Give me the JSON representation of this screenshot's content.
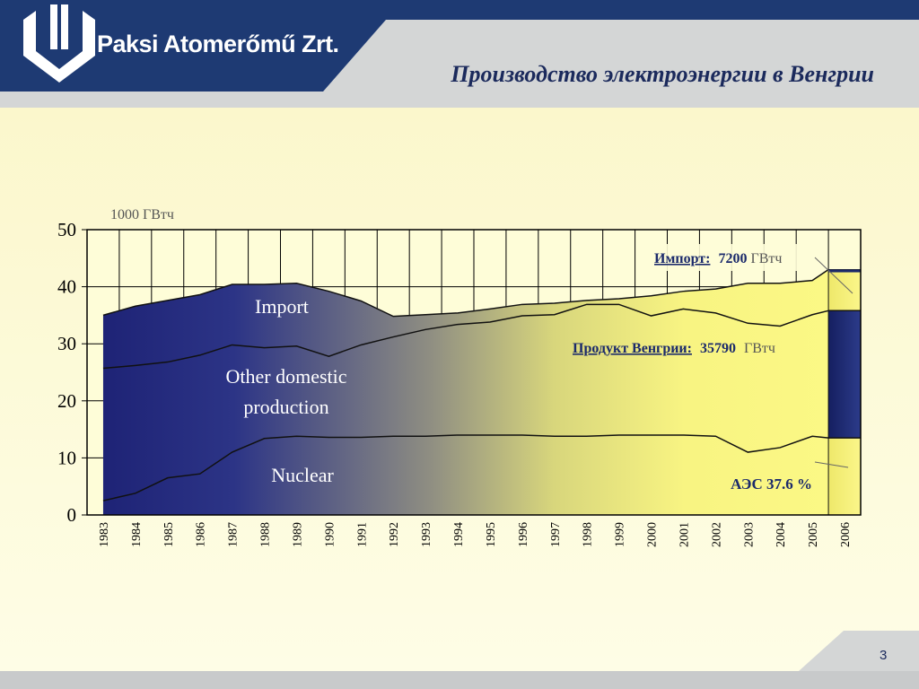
{
  "header": {
    "company": "Paksi Atomerőmű Zrt.",
    "title": "Производство электроэнергии в Венгрии"
  },
  "footer": {
    "page_number": "3"
  },
  "colors": {
    "navy": "#1e2a6e",
    "yellow": "#fbf785",
    "header_blue": "#1e3a73"
  },
  "chart_data": {
    "type": "area",
    "title": "",
    "unit_label": "1000 ГВтч",
    "xlabel": "",
    "ylabel": "",
    "ylim": [
      0,
      50
    ],
    "yticks": [
      0,
      10,
      20,
      30,
      40,
      50
    ],
    "grid": true,
    "categories": [
      "1983",
      "1984",
      "1985",
      "1986",
      "1987",
      "1988",
      "1989",
      "1990",
      "1991",
      "1992",
      "1993",
      "1994",
      "1995",
      "1996",
      "1997",
      "1998",
      "1999",
      "2000",
      "2001",
      "2002",
      "2003",
      "2004",
      "2005",
      "2006"
    ],
    "series": [
      {
        "name": "Nuclear",
        "cumulative_values": [
          2.5,
          3.8,
          6.5,
          7.2,
          11.0,
          13.4,
          13.8,
          13.6,
          13.6,
          13.8,
          13.8,
          14.0,
          14.0,
          14.0,
          13.8,
          13.8,
          14.0,
          14.0,
          14.0,
          13.8,
          11.0,
          11.8,
          13.8,
          13.5
        ]
      },
      {
        "name": "Other domestic production",
        "cumulative_values": [
          25.7,
          26.2,
          26.8,
          28.0,
          29.8,
          29.3,
          29.6,
          27.8,
          29.8,
          31.2,
          32.5,
          33.4,
          33.8,
          34.9,
          35.1,
          36.9,
          36.9,
          34.9,
          36.1,
          35.4,
          33.6,
          33.1,
          35.1,
          35.8
        ]
      },
      {
        "name": "Import",
        "cumulative_values": [
          35.0,
          36.6,
          37.6,
          38.6,
          40.4,
          40.4,
          40.6,
          39.2,
          37.5,
          34.8,
          35.1,
          35.4,
          36.1,
          36.9,
          37.1,
          37.6,
          37.9,
          38.4,
          39.2,
          39.6,
          40.6,
          40.6,
          41.1,
          43.0
        ]
      }
    ],
    "annotations": {
      "import": {
        "label": "Импорт:",
        "value": "7200",
        "unit": "ГВтч"
      },
      "product": {
        "label": "Продукт Венгрии:",
        "value": "35790",
        "unit": "ГВтч"
      },
      "aes": {
        "text": "АЭС 37.6 %"
      }
    }
  }
}
